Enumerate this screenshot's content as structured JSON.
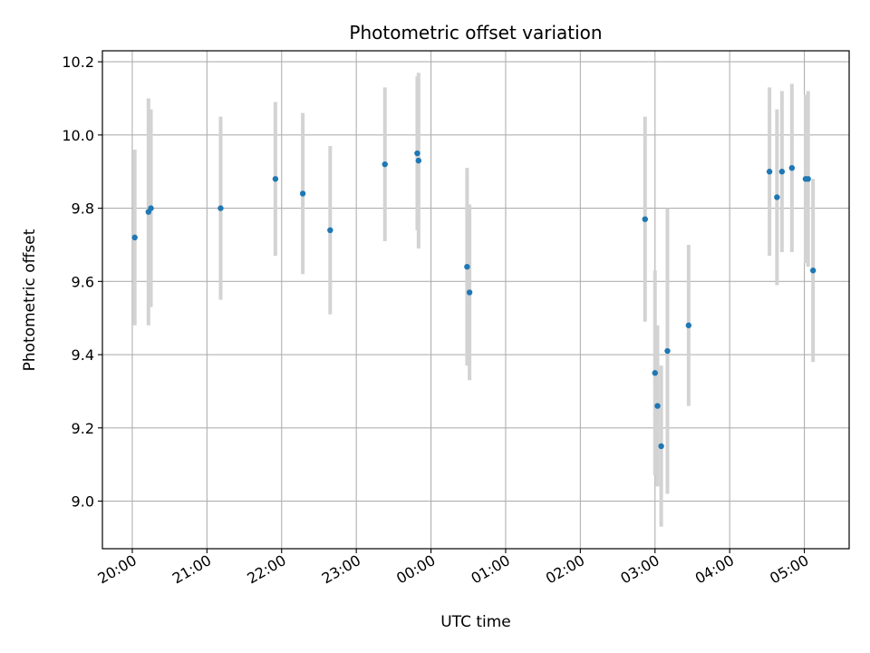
{
  "chart_data": {
    "type": "scatter",
    "title": "Photometric offset variation",
    "xlabel": "UTC time",
    "ylabel": "Photometric offset",
    "grid": true,
    "x_ticks": [
      "20:00",
      "21:00",
      "22:00",
      "23:00",
      "00:00",
      "01:00",
      "02:00",
      "03:00",
      "04:00",
      "05:00"
    ],
    "y_ticks": [
      "9.0",
      "9.2",
      "9.4",
      "9.6",
      "9.8",
      "10.0",
      "10.2"
    ],
    "xlim": [
      "19:36",
      "05:36"
    ],
    "ylim": [
      8.87,
      10.23
    ],
    "colors": {
      "points": "#1f77b4",
      "errorbars": "#d3d3d3",
      "grid": "#b0b0b0"
    },
    "series": [
      {
        "points": [
          {
            "x": "20:02",
            "y": 9.72,
            "yerr": 0.24
          },
          {
            "x": "20:13",
            "y": 9.79,
            "yerr": 0.31
          },
          {
            "x": "20:15",
            "y": 9.8,
            "yerr": 0.27
          },
          {
            "x": "21:11",
            "y": 9.8,
            "yerr": 0.25
          },
          {
            "x": "21:55",
            "y": 9.88,
            "yerr": 0.21
          },
          {
            "x": "22:17",
            "y": 9.84,
            "yerr": 0.22
          },
          {
            "x": "22:39",
            "y": 9.74,
            "yerr": 0.23
          },
          {
            "x": "23:23",
            "y": 9.92,
            "yerr": 0.21
          },
          {
            "x": "23:49",
            "y": 9.95,
            "yerr": 0.21
          },
          {
            "x": "23:50",
            "y": 9.93,
            "yerr": 0.24
          },
          {
            "x": "00:29",
            "y": 9.64,
            "yerr": 0.27
          },
          {
            "x": "00:31",
            "y": 9.57,
            "yerr": 0.24
          },
          {
            "x": "02:52",
            "y": 9.77,
            "yerr": 0.28
          },
          {
            "x": "03:00",
            "y": 9.35,
            "yerr": 0.28
          },
          {
            "x": "03:02",
            "y": 9.26,
            "yerr": 0.22
          },
          {
            "x": "03:05",
            "y": 9.15,
            "yerr": 0.22
          },
          {
            "x": "03:10",
            "y": 9.41,
            "yerr": 0.39
          },
          {
            "x": "03:27",
            "y": 9.48,
            "yerr": 0.22
          },
          {
            "x": "04:32",
            "y": 9.9,
            "yerr": 0.23
          },
          {
            "x": "04:38",
            "y": 9.83,
            "yerr": 0.24
          },
          {
            "x": "04:42",
            "y": 9.9,
            "yerr": 0.22
          },
          {
            "x": "04:50",
            "y": 9.91,
            "yerr": 0.23
          },
          {
            "x": "05:01",
            "y": 9.88,
            "yerr": 0.23
          },
          {
            "x": "05:03",
            "y": 9.88,
            "yerr": 0.24
          },
          {
            "x": "05:07",
            "y": 9.63,
            "yerr": 0.25
          }
        ]
      }
    ]
  }
}
